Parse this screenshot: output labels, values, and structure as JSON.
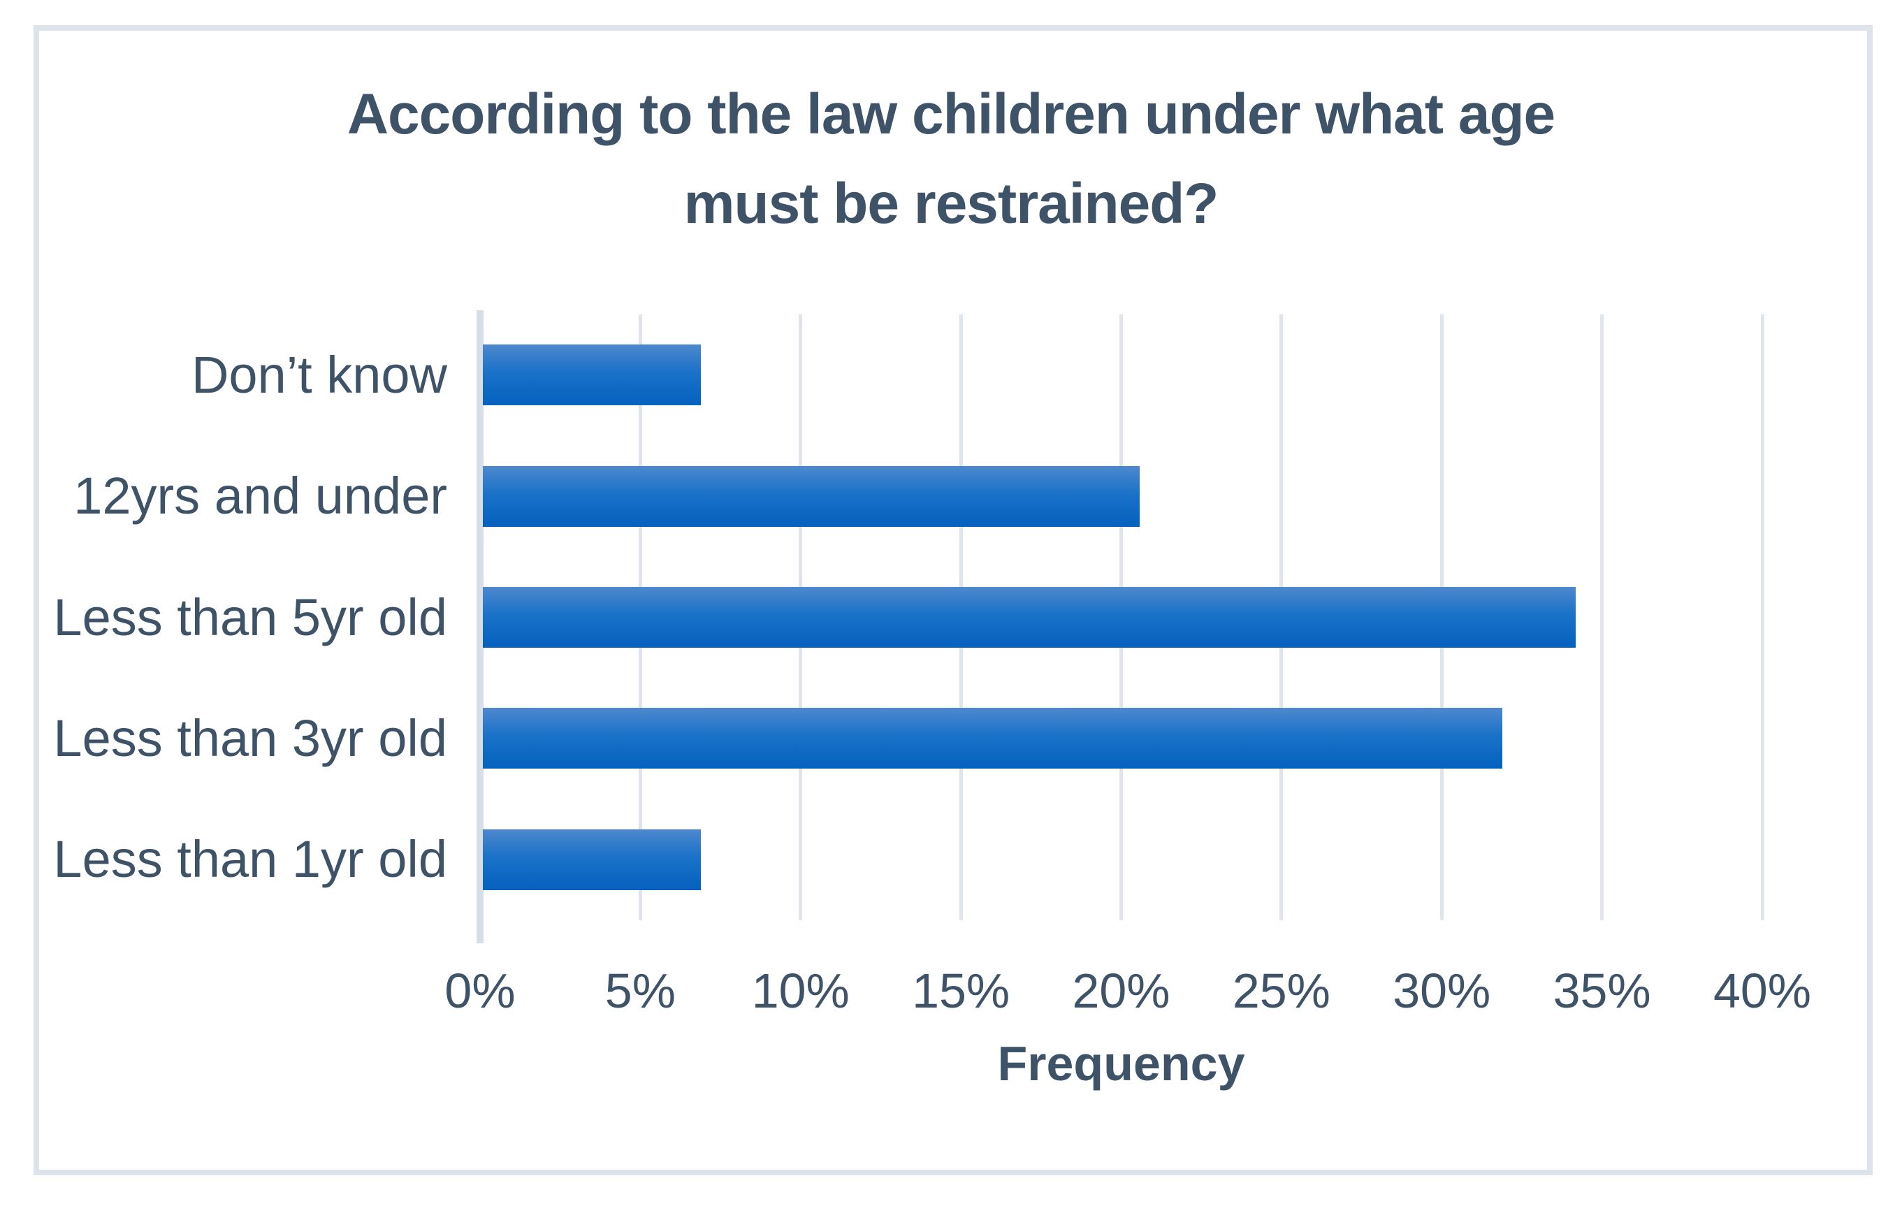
{
  "colors": {
    "text": "#3e5268",
    "bar_gradient_top": "#4d88ce",
    "bar_gradient_bottom": "#0461be",
    "gridline": "#dfe5ec",
    "frame_border": "#dce3eb",
    "background": "#ffffff"
  },
  "chart_data": {
    "type": "bar",
    "orientation": "horizontal",
    "title": "According to the law children under what age must be restrained?",
    "title_lines": [
      "According to the law children under what age",
      "must be restrained?"
    ],
    "categories": [
      "Don’t know",
      "12yrs and under",
      "Less than 5yr old",
      "Less than 3yr old",
      "Less than 1yr old"
    ],
    "values": [
      6.8,
      20.5,
      34.1,
      31.8,
      6.8
    ],
    "unit": "%",
    "xlabel": "Frequency",
    "ylabel": "",
    "xlim": [
      0,
      40
    ],
    "xtick_step": 5,
    "xtick_labels": [
      "0%",
      "5%",
      "10%",
      "15%",
      "20%",
      "25%",
      "30%",
      "35%",
      "40%"
    ],
    "grid": true,
    "legend_position": "none"
  }
}
